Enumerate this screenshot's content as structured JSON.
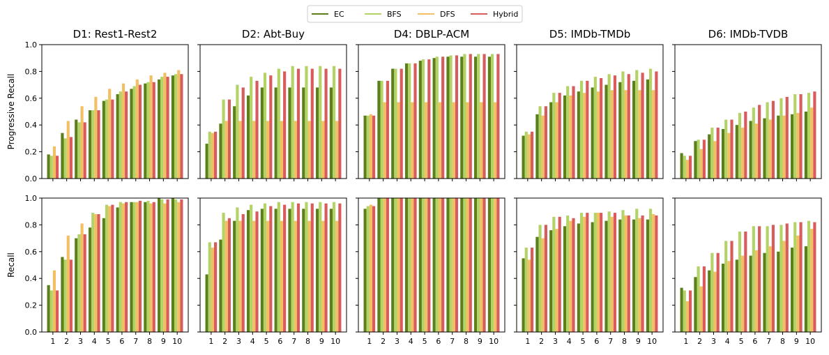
{
  "legend": {
    "placement": "top-center",
    "entries": [
      {
        "name": "EC",
        "color": "#5b7f1a"
      },
      {
        "name": "BFS",
        "color": "#b3d366"
      },
      {
        "name": "DFS",
        "color": "#f2c063"
      },
      {
        "name": "Hybrid",
        "color": "#d85c5c"
      }
    ]
  },
  "chart_data": {
    "type": "bar",
    "layout": "grid-2x5",
    "row_ylabels": [
      "Progressive Recall",
      "Recall"
    ],
    "categories": [
      "1",
      "2",
      "3",
      "4",
      "5",
      "6",
      "7",
      "8",
      "9",
      "10"
    ],
    "ylim": [
      0,
      1
    ],
    "yticks": [
      "0.0",
      "0.2",
      "0.4",
      "0.6",
      "0.8",
      "1.0"
    ],
    "series_names": [
      "EC",
      "BFS",
      "DFS",
      "Hybrid"
    ],
    "panels": [
      {
        "title": "D1: Rest1-Rest2",
        "rows": [
          {
            "series": [
              {
                "name": "EC",
                "values": [
                  0.18,
                  0.34,
                  0.44,
                  0.51,
                  0.58,
                  0.63,
                  0.67,
                  0.71,
                  0.74,
                  0.77
                ]
              },
              {
                "name": "BFS",
                "values": [
                  0.17,
                  0.3,
                  0.42,
                  0.51,
                  0.59,
                  0.65,
                  0.69,
                  0.72,
                  0.76,
                  0.78
                ]
              },
              {
                "name": "DFS",
                "values": [
                  0.24,
                  0.43,
                  0.54,
                  0.61,
                  0.67,
                  0.71,
                  0.74,
                  0.77,
                  0.79,
                  0.81
                ]
              },
              {
                "name": "Hybrid",
                "values": [
                  0.17,
                  0.31,
                  0.42,
                  0.51,
                  0.59,
                  0.65,
                  0.7,
                  0.72,
                  0.76,
                  0.78
                ]
              }
            ]
          },
          {
            "series": [
              {
                "name": "EC",
                "values": [
                  0.35,
                  0.56,
                  0.7,
                  0.78,
                  0.85,
                  0.93,
                  0.97,
                  0.97,
                  1.0,
                  1.0
                ]
              },
              {
                "name": "BFS",
                "values": [
                  0.31,
                  0.54,
                  0.73,
                  0.89,
                  0.95,
                  0.97,
                  0.97,
                  0.98,
                  0.99,
                  0.99
                ]
              },
              {
                "name": "DFS",
                "values": [
                  0.46,
                  0.72,
                  0.81,
                  0.88,
                  0.94,
                  0.96,
                  0.97,
                  0.96,
                  0.96,
                  0.97
                ]
              },
              {
                "name": "Hybrid",
                "values": [
                  0.31,
                  0.54,
                  0.73,
                  0.88,
                  0.95,
                  0.97,
                  0.98,
                  0.97,
                  0.99,
                  0.99
                ]
              }
            ]
          }
        ]
      },
      {
        "title": "D2: Abt-Buy",
        "rows": [
          {
            "series": [
              {
                "name": "EC",
                "values": [
                  0.26,
                  0.41,
                  0.54,
                  0.62,
                  0.68,
                  0.68,
                  0.68,
                  0.68,
                  0.68,
                  0.68
                ]
              },
              {
                "name": "BFS",
                "values": [
                  0.35,
                  0.59,
                  0.7,
                  0.76,
                  0.79,
                  0.82,
                  0.84,
                  0.84,
                  0.84,
                  0.84
                ]
              },
              {
                "name": "DFS",
                "values": [
                  0.34,
                  0.43,
                  0.43,
                  0.43,
                  0.43,
                  0.43,
                  0.43,
                  0.43,
                  0.43,
                  0.43
                ]
              },
              {
                "name": "Hybrid",
                "values": [
                  0.35,
                  0.59,
                  0.68,
                  0.73,
                  0.77,
                  0.8,
                  0.82,
                  0.82,
                  0.82,
                  0.82
                ]
              }
            ]
          },
          {
            "series": [
              {
                "name": "EC",
                "values": [
                  0.43,
                  0.69,
                  0.83,
                  0.91,
                  0.92,
                  0.92,
                  0.92,
                  0.92,
                  0.92,
                  0.92
                ]
              },
              {
                "name": "BFS",
                "values": [
                  0.67,
                  0.89,
                  0.93,
                  0.95,
                  0.96,
                  0.97,
                  0.97,
                  0.97,
                  0.97,
                  0.97
                ]
              },
              {
                "name": "DFS",
                "values": [
                  0.63,
                  0.83,
                  0.83,
                  0.83,
                  0.83,
                  0.83,
                  0.83,
                  0.83,
                  0.83,
                  0.83
                ]
              },
              {
                "name": "Hybrid",
                "values": [
                  0.67,
                  0.85,
                  0.88,
                  0.9,
                  0.94,
                  0.95,
                  0.96,
                  0.96,
                  0.96,
                  0.96
                ]
              }
            ]
          }
        ]
      },
      {
        "title": "D4: DBLP-ACM",
        "rows": [
          {
            "series": [
              {
                "name": "EC",
                "values": [
                  0.47,
                  0.73,
                  0.82,
                  0.86,
                  0.88,
                  0.9,
                  0.91,
                  0.91,
                  0.91,
                  0.91
                ]
              },
              {
                "name": "BFS",
                "values": [
                  0.47,
                  0.73,
                  0.82,
                  0.86,
                  0.89,
                  0.91,
                  0.92,
                  0.93,
                  0.93,
                  0.93
                ]
              },
              {
                "name": "DFS",
                "values": [
                  0.48,
                  0.57,
                  0.57,
                  0.57,
                  0.57,
                  0.57,
                  0.57,
                  0.57,
                  0.57,
                  0.57
                ]
              },
              {
                "name": "Hybrid",
                "values": [
                  0.47,
                  0.73,
                  0.82,
                  0.86,
                  0.89,
                  0.91,
                  0.92,
                  0.93,
                  0.93,
                  0.93
                ]
              }
            ]
          },
          {
            "series": [
              {
                "name": "EC",
                "values": [
                  0.92,
                  1.0,
                  1.0,
                  1.0,
                  1.0,
                  1.0,
                  1.0,
                  1.0,
                  1.0,
                  1.0
                ]
              },
              {
                "name": "BFS",
                "values": [
                  0.94,
                  1.0,
                  1.0,
                  1.0,
                  1.0,
                  1.0,
                  1.0,
                  1.0,
                  1.0,
                  1.0
                ]
              },
              {
                "name": "DFS",
                "values": [
                  0.95,
                  1.0,
                  1.0,
                  1.0,
                  1.0,
                  1.0,
                  1.0,
                  1.0,
                  1.0,
                  1.0
                ]
              },
              {
                "name": "Hybrid",
                "values": [
                  0.94,
                  1.0,
                  1.0,
                  1.0,
                  1.0,
                  1.0,
                  1.0,
                  1.0,
                  1.0,
                  1.0
                ]
              }
            ]
          }
        ]
      },
      {
        "title": "D5: IMDb-TMDb",
        "rows": [
          {
            "series": [
              {
                "name": "EC",
                "values": [
                  0.32,
                  0.48,
                  0.57,
                  0.62,
                  0.65,
                  0.68,
                  0.7,
                  0.72,
                  0.73,
                  0.74
                ]
              },
              {
                "name": "BFS",
                "values": [
                  0.35,
                  0.54,
                  0.64,
                  0.69,
                  0.73,
                  0.76,
                  0.78,
                  0.8,
                  0.81,
                  0.82
                ]
              },
              {
                "name": "DFS",
                "values": [
                  0.33,
                  0.47,
                  0.57,
                  0.62,
                  0.64,
                  0.65,
                  0.66,
                  0.66,
                  0.66,
                  0.66
                ]
              },
              {
                "name": "Hybrid",
                "values": [
                  0.35,
                  0.54,
                  0.64,
                  0.69,
                  0.73,
                  0.75,
                  0.77,
                  0.78,
                  0.79,
                  0.8
                ]
              }
            ]
          },
          {
            "series": [
              {
                "name": "EC",
                "values": [
                  0.55,
                  0.71,
                  0.76,
                  0.79,
                  0.81,
                  0.82,
                  0.83,
                  0.84,
                  0.84,
                  0.84
                ]
              },
              {
                "name": "BFS",
                "values": [
                  0.63,
                  0.8,
                  0.86,
                  0.87,
                  0.89,
                  0.89,
                  0.9,
                  0.91,
                  0.92,
                  0.92
                ]
              },
              {
                "name": "DFS",
                "values": [
                  0.54,
                  0.7,
                  0.77,
                  0.83,
                  0.86,
                  0.89,
                  0.86,
                  0.87,
                  0.85,
                  0.88
                ]
              },
              {
                "name": "Hybrid",
                "values": [
                  0.63,
                  0.8,
                  0.86,
                  0.85,
                  0.89,
                  0.89,
                  0.89,
                  0.87,
                  0.87,
                  0.87
                ]
              }
            ]
          }
        ]
      },
      {
        "title": "D6: IMDb-TVDB",
        "rows": [
          {
            "series": [
              {
                "name": "EC",
                "values": [
                  0.19,
                  0.28,
                  0.33,
                  0.37,
                  0.4,
                  0.43,
                  0.45,
                  0.47,
                  0.48,
                  0.5
                ]
              },
              {
                "name": "BFS",
                "values": [
                  0.17,
                  0.29,
                  0.38,
                  0.44,
                  0.49,
                  0.53,
                  0.57,
                  0.6,
                  0.63,
                  0.64
                ]
              },
              {
                "name": "DFS",
                "values": [
                  0.14,
                  0.22,
                  0.28,
                  0.34,
                  0.38,
                  0.41,
                  0.44,
                  0.47,
                  0.49,
                  0.53
                ]
              },
              {
                "name": "Hybrid",
                "values": [
                  0.17,
                  0.29,
                  0.38,
                  0.44,
                  0.5,
                  0.55,
                  0.58,
                  0.61,
                  0.63,
                  0.65
                ]
              }
            ]
          },
          {
            "series": [
              {
                "name": "EC",
                "values": [
                  0.33,
                  0.41,
                  0.46,
                  0.51,
                  0.54,
                  0.57,
                  0.59,
                  0.6,
                  0.63,
                  0.64
                ]
              },
              {
                "name": "BFS",
                "values": [
                  0.31,
                  0.49,
                  0.59,
                  0.68,
                  0.75,
                  0.79,
                  0.79,
                  0.8,
                  0.82,
                  0.83
                ]
              },
              {
                "name": "DFS",
                "values": [
                  0.23,
                  0.34,
                  0.45,
                  0.53,
                  0.57,
                  0.61,
                  0.64,
                  0.68,
                  0.72,
                  0.77
                ]
              },
              {
                "name": "Hybrid",
                "values": [
                  0.31,
                  0.49,
                  0.59,
                  0.68,
                  0.75,
                  0.79,
                  0.8,
                  0.81,
                  0.82,
                  0.82
                ]
              }
            ]
          }
        ]
      }
    ]
  }
}
